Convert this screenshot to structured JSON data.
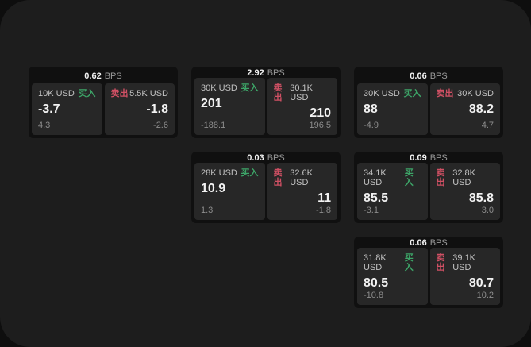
{
  "labels": {
    "bps_unit": "BPS",
    "buy": "买入",
    "sell": "卖出"
  },
  "colors": {
    "buy_accent": "#3da568",
    "sell_accent": "#d05064",
    "window_background": "#1d1d1d",
    "card_background": "#101010",
    "panel_background": "#272727"
  },
  "cards": [
    {
      "bps": "0.62",
      "row": 1,
      "col": 1,
      "buy": {
        "size": "10K USD",
        "value": "-3.7",
        "delta": "4.3"
      },
      "sell": {
        "size": "5.5K USD",
        "value": "-1.8",
        "delta": "-2.6"
      }
    },
    {
      "bps": "2.92",
      "row": 1,
      "col": 2,
      "buy": {
        "size": "30K USD",
        "value": "201",
        "delta": "-188.1"
      },
      "sell": {
        "size": "30.1K USD",
        "value": "210",
        "delta": "196.5"
      }
    },
    {
      "bps": "0.06",
      "row": 1,
      "col": 3,
      "buy": {
        "size": "30K USD",
        "value": "88",
        "delta": "-4.9"
      },
      "sell": {
        "size": "30K USD",
        "value": "88.2",
        "delta": "4.7"
      }
    },
    {
      "bps": "0.03",
      "row": 2,
      "col": 2,
      "buy": {
        "size": "28K USD",
        "value": "10.9",
        "delta": "1.3"
      },
      "sell": {
        "size": "32.6K USD",
        "value": "11",
        "delta": "-1.8"
      }
    },
    {
      "bps": "0.09",
      "row": 2,
      "col": 3,
      "buy": {
        "size": "34.1K USD",
        "value": "85.5",
        "delta": "-3.1"
      },
      "sell": {
        "size": "32.8K USD",
        "value": "85.8",
        "delta": "3.0"
      }
    },
    {
      "bps": "0.06",
      "row": 3,
      "col": 3,
      "buy": {
        "size": "31.8K USD",
        "value": "80.5",
        "delta": "-10.8"
      },
      "sell": {
        "size": "39.1K USD",
        "value": "80.7",
        "delta": "10.2"
      }
    }
  ]
}
